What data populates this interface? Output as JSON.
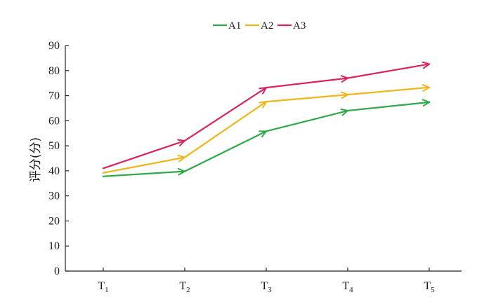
{
  "chart_data": {
    "type": "line",
    "title": "",
    "ylabel": "评分(分)",
    "xlabel": "",
    "categories": [
      "T1",
      "T2",
      "T3",
      "T4",
      "T5"
    ],
    "x_ticks": [
      {
        "base": "T",
        "sub": "1"
      },
      {
        "base": "T",
        "sub": "2"
      },
      {
        "base": "T",
        "sub": "3"
      },
      {
        "base": "T",
        "sub": "4"
      },
      {
        "base": "T",
        "sub": "5"
      }
    ],
    "ylim": [
      0,
      90
    ],
    "yticks": [
      0,
      10,
      20,
      30,
      40,
      50,
      60,
      70,
      80,
      90
    ],
    "grid": false,
    "legend_position": "top-center",
    "series": [
      {
        "name": "A1",
        "color": "#2eaa4a",
        "values": [
          37.8,
          39.8,
          55.8,
          64.0,
          67.4
        ]
      },
      {
        "name": "A2",
        "color": "#f0b619",
        "values": [
          39.2,
          45.4,
          67.6,
          70.4,
          73.3
        ]
      },
      {
        "name": "A3",
        "color": "#d9245e",
        "values": [
          41.0,
          52.0,
          73.2,
          77.0,
          82.6
        ]
      }
    ]
  }
}
